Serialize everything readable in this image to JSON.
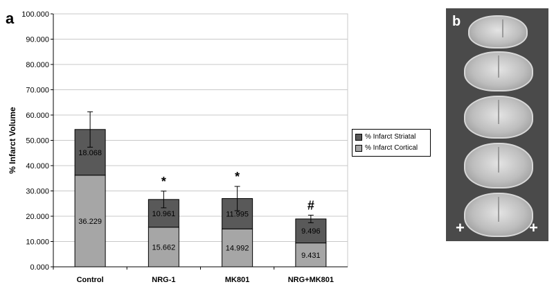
{
  "panels": {
    "a": "a",
    "b": "b"
  },
  "chart_data": {
    "type": "bar",
    "stacked": true,
    "ylabel": "% Infarct Volume",
    "xlabel": "",
    "ylim": [
      0,
      100
    ],
    "yticks": [
      "0.000",
      "10.000",
      "20.000",
      "30.000",
      "40.000",
      "50.000",
      "60.000",
      "70.000",
      "80.000",
      "90.000",
      "100.000"
    ],
    "grid": true,
    "legend_position": "right",
    "categories": [
      "Control",
      "NRG-1",
      "MK801",
      "NRG+MK801"
    ],
    "series": [
      {
        "name": "% Infarct Cortical",
        "values": [
          36.229,
          15.662,
          14.992,
          9.431
        ],
        "labels": [
          "36.229",
          "15.662",
          "14.992",
          "9.431"
        ],
        "color": "#a6a6a6"
      },
      {
        "name": "% Infarct Striatal",
        "values": [
          18.068,
          10.961,
          11.995,
          9.496
        ],
        "labels": [
          "18.068",
          "10.961",
          "11.995",
          "9.496"
        ],
        "color": "#595959"
      }
    ],
    "error_bars": [
      7.0,
      3.3,
      4.8,
      1.5
    ],
    "annotations": [
      "",
      "*",
      "*",
      "#"
    ]
  },
  "photo": {
    "markers": [
      "+",
      "+"
    ]
  }
}
